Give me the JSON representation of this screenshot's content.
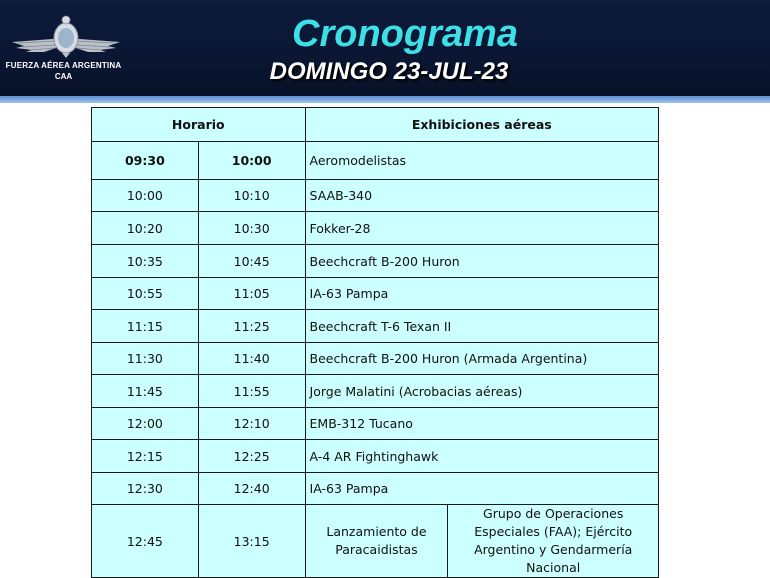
{
  "header": {
    "org_line1": "FUERZA AÉREA ARGENTINA",
    "org_line2": "CAA",
    "title": "Cronograma",
    "subtitle": "DOMINGO 23-JUL-23",
    "title_color": "#3ee0e8",
    "banner_color": "#0d1b3d"
  },
  "table": {
    "header_horario": "Horario",
    "header_exhibiciones": "Exhibiciones aéreas",
    "cell_bg": "#ccffff",
    "rows": [
      {
        "start": "09:30",
        "end": "10:00",
        "show": "Aeromodelistas"
      },
      {
        "start": "10:00",
        "end": "10:10",
        "show": "SAAB-340"
      },
      {
        "start": "10:20",
        "end": "10:30",
        "show": "Fokker-28"
      },
      {
        "start": "10:35",
        "end": "10:45",
        "show": "Beechcraft B-200 Huron"
      },
      {
        "start": "10:55",
        "end": "11:05",
        "show": "IA-63 Pampa"
      },
      {
        "start": "11:15",
        "end": "11:25",
        "show": "Beechcraft T-6 Texan II"
      },
      {
        "start": "11:30",
        "end": "11:40",
        "show": "Beechcraft B-200 Huron (Armada Argentina)"
      },
      {
        "start": "11:45",
        "end": "11:55",
        "show": "Jorge Malatini (Acrobacias aéreas)"
      },
      {
        "start": "12:00",
        "end": "12:10",
        "show": "EMB-312 Tucano"
      },
      {
        "start": "12:15",
        "end": "12:25",
        "show": "A-4 AR Fightinghawk"
      },
      {
        "start": "12:30",
        "end": "12:40",
        "show": "IA-63 Pampa"
      }
    ],
    "last_row": {
      "start": "12:45",
      "end": "13:15",
      "show_a": "Lanzamiento de Paracaidistas",
      "show_b": "Grupo de Operaciones Especiales (FAA); Ejército Argentino y Gendarmería Nacional"
    }
  }
}
